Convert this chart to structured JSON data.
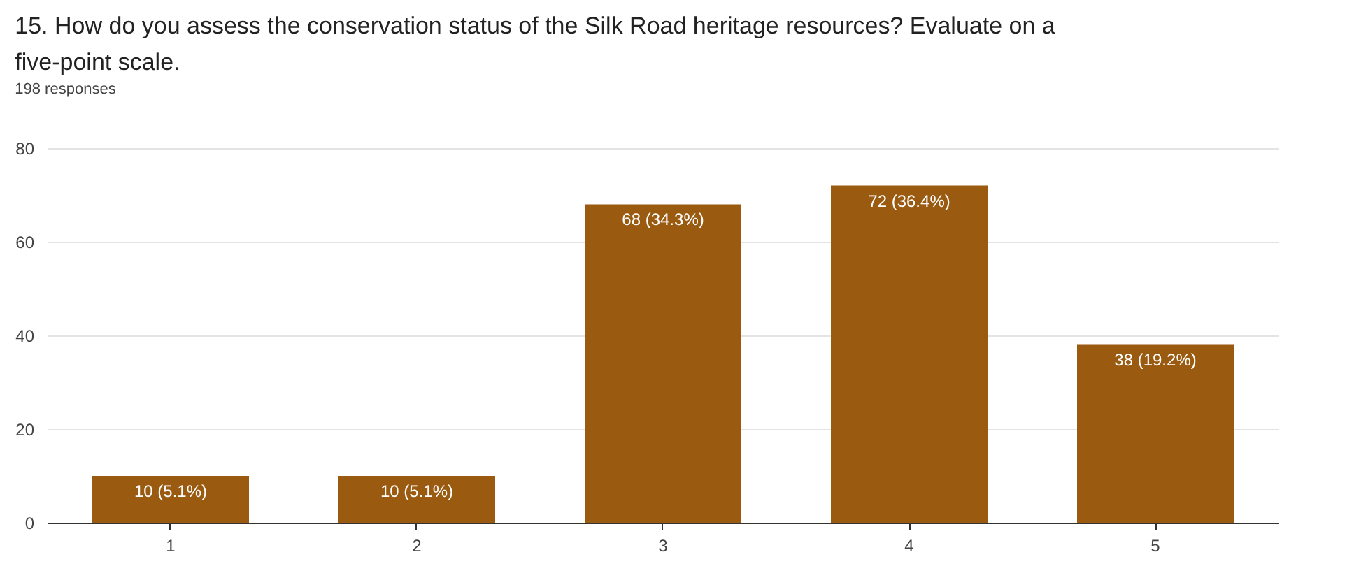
{
  "chart_data": {
    "type": "bar",
    "title": "15. How do you assess the conservation status of the Silk Road heritage resources? Evaluate on a five-point scale.",
    "subtitle": "198 responses",
    "categories": [
      "1",
      "2",
      "3",
      "4",
      "5"
    ],
    "values": [
      10,
      10,
      68,
      72,
      38
    ],
    "color": "#9a5a10",
    "value_labels": [
      "10 (5.1%)",
      "10 (5.1%)",
      "68 (34.3%)",
      "72 (36.4%)",
      "38 (19.2%)"
    ],
    "ylim": [
      0,
      80
    ],
    "yticks": [
      0,
      20,
      40,
      60,
      80
    ],
    "grid": "y"
  }
}
